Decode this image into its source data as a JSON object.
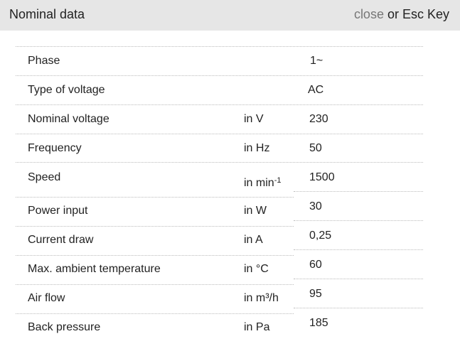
{
  "header": {
    "title": "Nominal data",
    "close_label": "close",
    "close_suffix": " or Esc Key"
  },
  "rows": [
    {
      "label": "Phase",
      "unit": "",
      "value": "1~"
    },
    {
      "label": "Type of voltage",
      "unit": "",
      "value": "AC"
    },
    {
      "label": "Nominal voltage",
      "unit": "in V",
      "value": "230"
    },
    {
      "label": "Frequency",
      "unit": "in Hz",
      "value": "50"
    },
    {
      "label": "Speed",
      "unit": "in min",
      "unit_sup": "-1",
      "value": "1500"
    },
    {
      "label": "Power input",
      "unit": "in W",
      "value": "30"
    },
    {
      "label": "Current draw",
      "unit": "in A",
      "value": "0,25"
    },
    {
      "label": "Max. ambient temperature",
      "unit": "in °C",
      "value": "60"
    },
    {
      "label": "Air flow",
      "unit": "in m³/h",
      "value": "95"
    },
    {
      "label": "Back pressure",
      "unit": "in Pa",
      "value": "185"
    }
  ]
}
